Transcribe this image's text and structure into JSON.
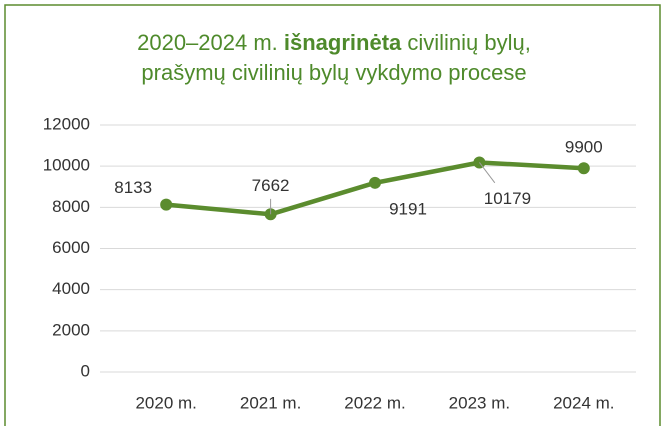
{
  "chart_data": {
    "type": "line",
    "title": {
      "start": "2020–2024 m. ",
      "bold": "išnagrinėta",
      "end": " civilinių bylų,",
      "line2": "prašymų civilinių bylų vykdymo procese"
    },
    "categories": [
      "2020 m.",
      "2021 m.",
      "2022 m.",
      "2023 m.",
      "2024 m."
    ],
    "series": [
      {
        "color": "#5b8c2e",
        "values": [
          8133,
          7662,
          9191,
          10179,
          9900
        ]
      }
    ],
    "ylim": [
      0,
      12000
    ],
    "yticks": [
      0,
      2000,
      4000,
      6000,
      8000,
      10000,
      12000
    ],
    "grid": true
  }
}
